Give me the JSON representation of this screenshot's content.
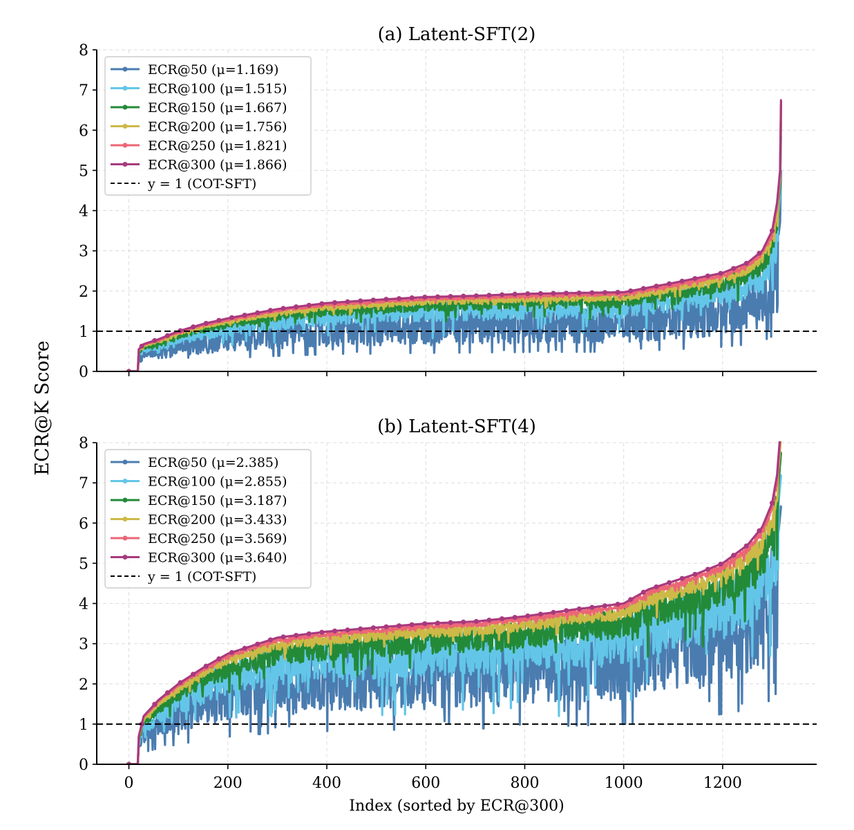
{
  "chart_data": [
    {
      "type": "line",
      "title": "(a) Latent-SFT(2)",
      "xlabel": "",
      "ylabel": "ECR@K Score",
      "xlim": [
        -65,
        1390
      ],
      "ylim": [
        0,
        8
      ],
      "xticks": [
        0,
        200,
        400,
        600,
        800,
        1000,
        1200
      ],
      "yticks": [
        0,
        1,
        2,
        3,
        4,
        5,
        6,
        7,
        8
      ],
      "grid": true,
      "legend_position": "top-left",
      "n_points": 1320,
      "reference_line": {
        "y": 1,
        "label": "y = 1 (COT-SFT)",
        "style": "dashed",
        "color": "#000000"
      },
      "envelope_ecr300": {
        "x": [
          0,
          18,
          20,
          30,
          60,
          100,
          150,
          200,
          300,
          400,
          500,
          600,
          700,
          800,
          900,
          1000,
          1100,
          1200,
          1250,
          1280,
          1300,
          1310,
          1316,
          1318
        ],
        "y": [
          0,
          0,
          0.55,
          0.68,
          0.8,
          1.0,
          1.18,
          1.32,
          1.55,
          1.7,
          1.78,
          1.85,
          1.88,
          1.93,
          1.95,
          1.97,
          2.2,
          2.45,
          2.7,
          3.0,
          3.5,
          4.2,
          5.0,
          6.75
        ]
      },
      "series": [
        {
          "name": "ECR@50 (μ=1.169)",
          "k": 50,
          "mean": 1.169,
          "color": "#4a7cb0",
          "ratio": 0.63
        },
        {
          "name": "ECR@100 (μ=1.515)",
          "k": 100,
          "mean": 1.515,
          "color": "#63c6e8",
          "ratio": 0.81
        },
        {
          "name": "ECR@150 (μ=1.667)",
          "k": 150,
          "mean": 1.667,
          "color": "#238a38",
          "ratio": 0.89
        },
        {
          "name": "ECR@200 (μ=1.756)",
          "k": 200,
          "mean": 1.756,
          "color": "#cdb947",
          "ratio": 0.94
        },
        {
          "name": "ECR@250 (μ=1.821)",
          "k": 250,
          "mean": 1.821,
          "color": "#ec6677",
          "ratio": 0.976
        },
        {
          "name": "ECR@300 (μ=1.866)",
          "k": 300,
          "mean": 1.866,
          "color": "#a83a7e",
          "ratio": 1.0
        }
      ]
    },
    {
      "type": "line",
      "title": "(b) Latent-SFT(4)",
      "xlabel": "Index (sorted by ECR@300)",
      "ylabel": "ECR@K Score",
      "xlim": [
        -65,
        1390
      ],
      "ylim": [
        0,
        8
      ],
      "xticks": [
        0,
        200,
        400,
        600,
        800,
        1000,
        1200
      ],
      "yticks": [
        0,
        1,
        2,
        3,
        4,
        5,
        6,
        7,
        8
      ],
      "grid": true,
      "legend_position": "top-left",
      "n_points": 1320,
      "reference_line": {
        "y": 1,
        "label": "y = 1 (COT-SFT)",
        "style": "dashed",
        "color": "#000000"
      },
      "envelope_ecr300": {
        "x": [
          0,
          18,
          20,
          30,
          60,
          100,
          150,
          200,
          250,
          300,
          400,
          500,
          600,
          700,
          800,
          900,
          1000,
          1050,
          1100,
          1150,
          1200,
          1250,
          1280,
          1300,
          1310,
          1318
        ],
        "y": [
          0,
          0,
          0.7,
          1.2,
          1.6,
          2.0,
          2.4,
          2.75,
          2.95,
          3.15,
          3.3,
          3.4,
          3.5,
          3.55,
          3.68,
          3.85,
          4.0,
          4.35,
          4.55,
          4.75,
          5.0,
          5.45,
          5.9,
          6.5,
          7.2,
          8.5
        ]
      },
      "series": [
        {
          "name": "ECR@50 (μ=2.385)",
          "k": 50,
          "mean": 2.385,
          "color": "#4a7cb0",
          "ratio": 0.65
        },
        {
          "name": "ECR@100 (μ=2.855)",
          "k": 100,
          "mean": 2.855,
          "color": "#63c6e8",
          "ratio": 0.78
        },
        {
          "name": "ECR@150 (μ=3.187)",
          "k": 150,
          "mean": 3.187,
          "color": "#238a38",
          "ratio": 0.875
        },
        {
          "name": "ECR@200 (μ=3.433)",
          "k": 200,
          "mean": 3.433,
          "color": "#cdb947",
          "ratio": 0.943
        },
        {
          "name": "ECR@250 (μ=3.569)",
          "k": 250,
          "mean": 3.569,
          "color": "#ec6677",
          "ratio": 0.98
        },
        {
          "name": "ECR@300 (μ=3.640)",
          "k": 300,
          "mean": 3.64,
          "color": "#a83a7e",
          "ratio": 1.0
        }
      ]
    }
  ]
}
